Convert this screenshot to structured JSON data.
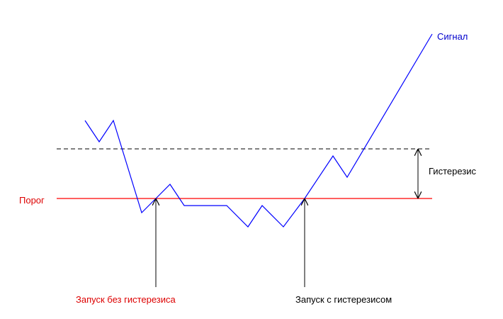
{
  "labels": {
    "signal": "Сигнал",
    "threshold": "Порог",
    "hysteresis": "Гистерезис",
    "trigger_without_hysteresis": "Запуск без гистерезиса",
    "trigger_with_hysteresis": "Запуск с гистерезисом"
  },
  "colors": {
    "signal": "#0000ff",
    "threshold": "#ff0000",
    "hysteresis_line": "#000000",
    "text_dark": "#000000",
    "text_red": "#dd0000",
    "text_blue": "#0000cc",
    "background": "#ffffff"
  }
}
